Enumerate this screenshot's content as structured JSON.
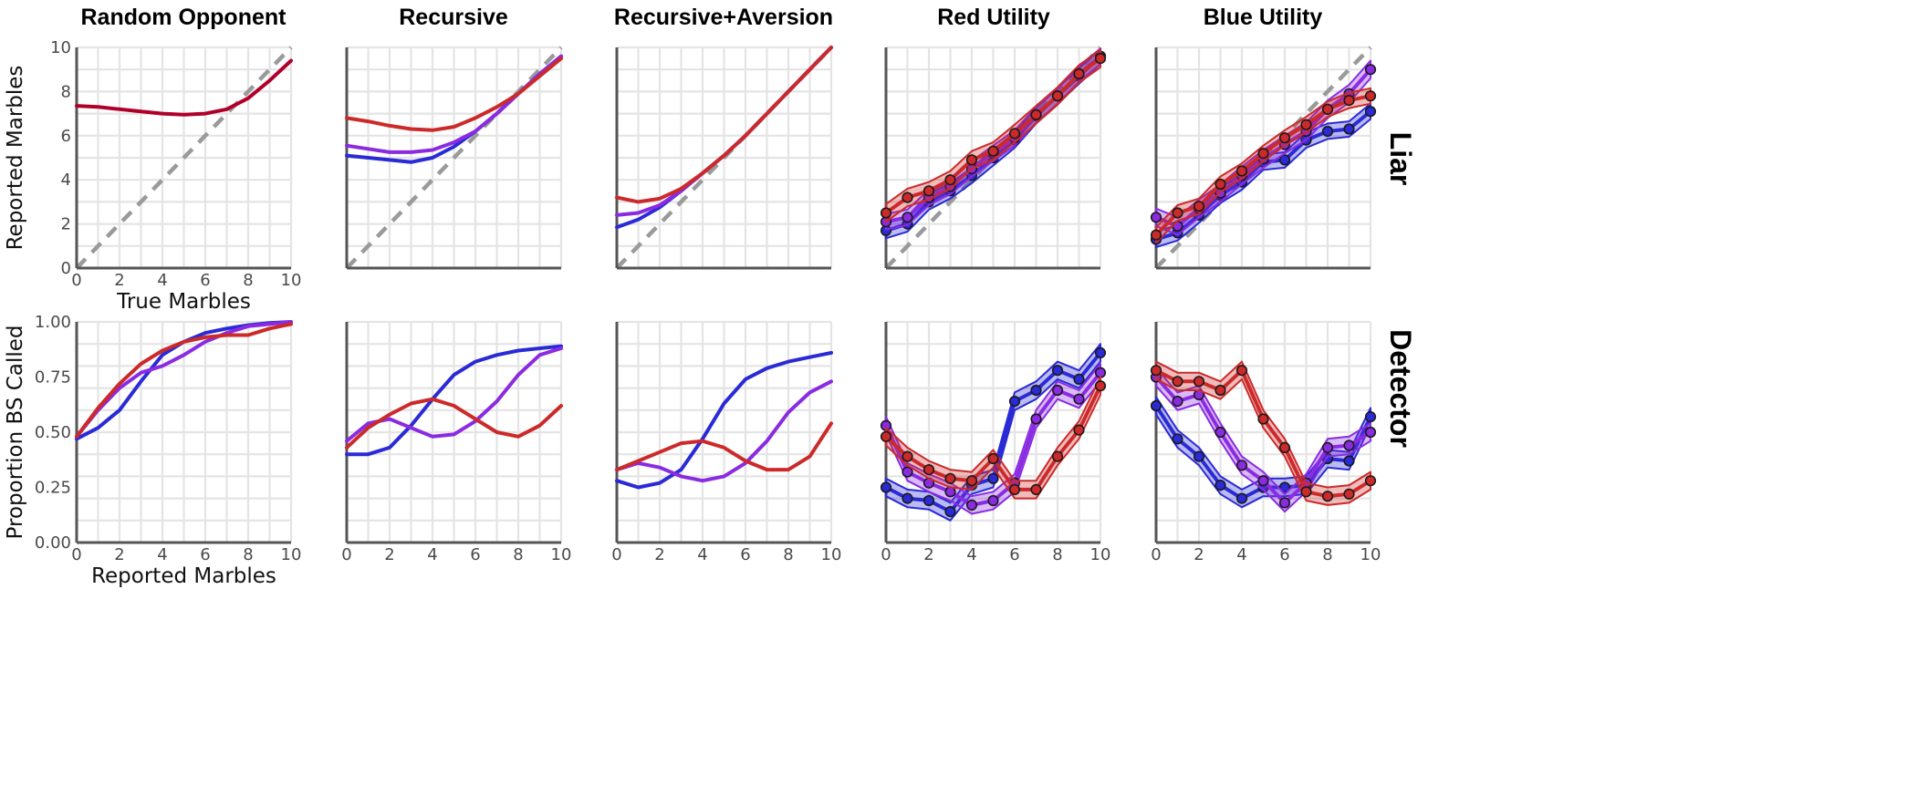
{
  "colors": {
    "red": "#cc2a2a",
    "purple": "#8a2be2",
    "blue": "#2a2ad6",
    "dark_red": "#b0002a",
    "diagonal": "#9a9a9a"
  },
  "row_labels": [
    "Liar",
    "Detector"
  ],
  "column_titles": [
    "Random Opponent",
    "Recursive",
    "Recursive+Aversion",
    "Red Utility",
    "Blue Utility"
  ],
  "chart_data": [
    {
      "type": "line",
      "row": 0,
      "col": 0,
      "title": "Random Opponent",
      "xlabel": "True Marbles",
      "ylabel": "Reported Marbles",
      "xlim": [
        0,
        10
      ],
      "ylim": [
        0,
        10
      ],
      "xticks": [
        "0",
        "2",
        "4",
        "6",
        "8",
        "10"
      ],
      "yticks": [
        "0",
        "2",
        "4",
        "6",
        "8",
        "10"
      ],
      "show_x_tick_labels": true,
      "show_y_tick_labels": true,
      "diagonal": true,
      "grid": true,
      "x": [
        0,
        1,
        2,
        3,
        4,
        5,
        6,
        7,
        8,
        9,
        10
      ],
      "series": [
        {
          "color": "dark_red",
          "values": [
            7.35,
            7.3,
            7.2,
            7.1,
            7.0,
            6.95,
            7.0,
            7.2,
            7.7,
            8.5,
            9.4
          ]
        }
      ]
    },
    {
      "type": "line",
      "row": 0,
      "col": 1,
      "title": "Recursive",
      "xlim": [
        0,
        10
      ],
      "ylim": [
        0,
        10
      ],
      "show_x_tick_labels": false,
      "show_y_tick_labels": false,
      "diagonal": true,
      "grid": true,
      "x": [
        0,
        1,
        2,
        3,
        4,
        5,
        6,
        7,
        8,
        9,
        10
      ],
      "series": [
        {
          "color": "blue",
          "values": [
            5.1,
            5.0,
            4.9,
            4.8,
            5.0,
            5.5,
            6.2,
            7.0,
            7.9,
            8.8,
            9.6
          ]
        },
        {
          "color": "purple",
          "values": [
            5.55,
            5.4,
            5.25,
            5.25,
            5.35,
            5.7,
            6.2,
            7.0,
            7.9,
            8.8,
            9.6
          ]
        },
        {
          "color": "red",
          "values": [
            6.8,
            6.65,
            6.45,
            6.3,
            6.25,
            6.4,
            6.8,
            7.3,
            7.9,
            8.7,
            9.5
          ]
        }
      ]
    },
    {
      "type": "line",
      "row": 0,
      "col": 2,
      "title": "Recursive+Aversion",
      "xlim": [
        0,
        10
      ],
      "ylim": [
        0,
        10
      ],
      "show_x_tick_labels": false,
      "show_y_tick_labels": false,
      "diagonal": true,
      "grid": true,
      "x": [
        0,
        1,
        2,
        3,
        4,
        5,
        6,
        7,
        8,
        9,
        10
      ],
      "series": [
        {
          "color": "blue",
          "values": [
            1.85,
            2.2,
            2.75,
            3.5,
            4.3,
            5.1,
            6.0,
            7.0,
            8.0,
            9.0,
            10.0
          ]
        },
        {
          "color": "purple",
          "values": [
            2.4,
            2.5,
            2.85,
            3.5,
            4.3,
            5.1,
            6.0,
            7.0,
            8.0,
            9.0,
            10.0
          ]
        },
        {
          "color": "red",
          "values": [
            3.2,
            3.0,
            3.15,
            3.6,
            4.3,
            5.1,
            6.0,
            7.0,
            8.0,
            9.0,
            10.0
          ]
        }
      ]
    },
    {
      "type": "line",
      "row": 0,
      "col": 3,
      "title": "Red Utility",
      "xlim": [
        0,
        10
      ],
      "ylim": [
        0,
        10
      ],
      "show_x_tick_labels": false,
      "show_y_tick_labels": false,
      "diagonal": true,
      "grid": true,
      "x": [
        0,
        1,
        2,
        3,
        4,
        5,
        6,
        7,
        8,
        9,
        10
      ],
      "series": [
        {
          "color": "blue",
          "band": 0.35,
          "markers": true,
          "values": [
            1.7,
            2.0,
            3.0,
            3.5,
            4.2,
            5.0,
            5.8,
            6.9,
            7.8,
            8.7,
            9.6
          ]
        },
        {
          "color": "purple",
          "band": 0.35,
          "markers": true,
          "values": [
            2.1,
            2.3,
            3.2,
            3.7,
            4.5,
            5.2,
            5.9,
            6.95,
            7.8,
            8.8,
            9.6
          ]
        },
        {
          "color": "red",
          "band": 0.4,
          "markers": true,
          "values": [
            2.5,
            3.2,
            3.5,
            4.0,
            4.9,
            5.3,
            6.1,
            6.95,
            7.8,
            8.8,
            9.5
          ]
        }
      ]
    },
    {
      "type": "line",
      "row": 0,
      "col": 4,
      "title": "Blue Utility",
      "xlim": [
        0,
        10
      ],
      "ylim": [
        0,
        10
      ],
      "show_x_tick_labels": false,
      "show_y_tick_labels": false,
      "diagonal": true,
      "grid": true,
      "x": [
        0,
        1,
        2,
        3,
        4,
        5,
        6,
        7,
        8,
        9,
        10
      ],
      "series": [
        {
          "color": "blue",
          "band": 0.35,
          "markers": true,
          "values": [
            1.3,
            1.6,
            2.4,
            3.3,
            3.9,
            4.8,
            4.9,
            5.8,
            6.2,
            6.3,
            7.1
          ]
        },
        {
          "color": "purple",
          "band": 0.4,
          "markers": true,
          "values": [
            2.3,
            1.9,
            2.7,
            3.4,
            4.2,
            4.95,
            5.6,
            6.2,
            7.2,
            7.9,
            9.0
          ]
        },
        {
          "color": "red",
          "band": 0.35,
          "markers": true,
          "values": [
            1.5,
            2.5,
            2.8,
            3.8,
            4.4,
            5.2,
            5.9,
            6.5,
            7.2,
            7.6,
            7.8
          ]
        }
      ]
    },
    {
      "type": "line",
      "row": 1,
      "col": 0,
      "xlabel": "Reported Marbles",
      "ylabel": "Proportion BS Called",
      "xlim": [
        0,
        10
      ],
      "ylim": [
        0,
        1
      ],
      "xticks": [
        "0",
        "2",
        "4",
        "6",
        "8",
        "10"
      ],
      "yticks": [
        "0.00",
        "0.25",
        "0.50",
        "0.75",
        "1.00"
      ],
      "show_x_tick_labels": true,
      "show_y_tick_labels": true,
      "diagonal": false,
      "grid": true,
      "x": [
        0,
        1,
        2,
        3,
        4,
        5,
        6,
        7,
        8,
        9,
        10
      ],
      "series": [
        {
          "color": "blue",
          "values": [
            0.47,
            0.52,
            0.6,
            0.73,
            0.85,
            0.91,
            0.95,
            0.97,
            0.985,
            0.995,
            1.0
          ]
        },
        {
          "color": "purple",
          "values": [
            0.48,
            0.6,
            0.7,
            0.77,
            0.8,
            0.85,
            0.91,
            0.95,
            0.98,
            0.99,
            1.0
          ]
        },
        {
          "color": "red",
          "values": [
            0.48,
            0.61,
            0.72,
            0.81,
            0.87,
            0.91,
            0.93,
            0.94,
            0.94,
            0.97,
            0.99
          ]
        }
      ]
    },
    {
      "type": "line",
      "row": 1,
      "col": 1,
      "xlim": [
        0,
        10
      ],
      "ylim": [
        0,
        1
      ],
      "xticks": [
        "0",
        "2",
        "4",
        "6",
        "8",
        "10"
      ],
      "show_x_tick_labels": true,
      "show_y_tick_labels": false,
      "diagonal": false,
      "grid": true,
      "x": [
        0,
        1,
        2,
        3,
        4,
        5,
        6,
        7,
        8,
        9,
        10
      ],
      "series": [
        {
          "color": "blue",
          "values": [
            0.4,
            0.4,
            0.43,
            0.53,
            0.65,
            0.76,
            0.82,
            0.85,
            0.87,
            0.88,
            0.89
          ]
        },
        {
          "color": "purple",
          "values": [
            0.46,
            0.54,
            0.56,
            0.52,
            0.48,
            0.49,
            0.55,
            0.64,
            0.76,
            0.85,
            0.88
          ]
        },
        {
          "color": "red",
          "values": [
            0.43,
            0.52,
            0.58,
            0.63,
            0.65,
            0.62,
            0.56,
            0.5,
            0.48,
            0.53,
            0.62
          ]
        }
      ]
    },
    {
      "type": "line",
      "row": 1,
      "col": 2,
      "xlim": [
        0,
        10
      ],
      "ylim": [
        0,
        1
      ],
      "xticks": [
        "0",
        "2",
        "4",
        "6",
        "8",
        "10"
      ],
      "show_x_tick_labels": true,
      "show_y_tick_labels": false,
      "diagonal": false,
      "grid": true,
      "x": [
        0,
        1,
        2,
        3,
        4,
        5,
        6,
        7,
        8,
        9,
        10
      ],
      "series": [
        {
          "color": "blue",
          "values": [
            0.28,
            0.25,
            0.27,
            0.33,
            0.47,
            0.63,
            0.74,
            0.79,
            0.82,
            0.84,
            0.86
          ]
        },
        {
          "color": "purple",
          "values": [
            0.33,
            0.36,
            0.34,
            0.3,
            0.28,
            0.3,
            0.36,
            0.46,
            0.59,
            0.68,
            0.73
          ]
        },
        {
          "color": "red",
          "values": [
            0.33,
            0.37,
            0.41,
            0.45,
            0.46,
            0.43,
            0.37,
            0.33,
            0.33,
            0.39,
            0.54
          ]
        }
      ]
    },
    {
      "type": "line",
      "row": 1,
      "col": 3,
      "xlim": [
        0,
        10
      ],
      "ylim": [
        0,
        1
      ],
      "xticks": [
        "0",
        "2",
        "4",
        "6",
        "8",
        "10"
      ],
      "show_x_tick_labels": true,
      "show_y_tick_labels": false,
      "diagonal": false,
      "grid": true,
      "x": [
        0,
        1,
        2,
        3,
        4,
        5,
        6,
        7,
        8,
        9,
        10
      ],
      "series": [
        {
          "color": "blue",
          "band": 0.04,
          "markers": true,
          "values": [
            0.25,
            0.2,
            0.19,
            0.14,
            0.26,
            0.29,
            0.64,
            0.69,
            0.78,
            0.74,
            0.86
          ]
        },
        {
          "color": "purple",
          "band": 0.04,
          "markers": true,
          "values": [
            0.53,
            0.32,
            0.27,
            0.23,
            0.17,
            0.19,
            0.27,
            0.56,
            0.69,
            0.65,
            0.77
          ]
        },
        {
          "color": "red",
          "band": 0.04,
          "markers": true,
          "values": [
            0.48,
            0.39,
            0.33,
            0.29,
            0.28,
            0.38,
            0.24,
            0.24,
            0.39,
            0.51,
            0.71
          ]
        }
      ]
    },
    {
      "type": "line",
      "row": 1,
      "col": 4,
      "xlim": [
        0,
        10
      ],
      "ylim": [
        0,
        1
      ],
      "xticks": [
        "0",
        "2",
        "4",
        "6",
        "8",
        "10"
      ],
      "show_x_tick_labels": true,
      "show_y_tick_labels": false,
      "diagonal": false,
      "grid": true,
      "x": [
        0,
        1,
        2,
        3,
        4,
        5,
        6,
        7,
        8,
        9,
        10
      ],
      "series": [
        {
          "color": "blue",
          "band": 0.04,
          "markers": true,
          "values": [
            0.62,
            0.47,
            0.39,
            0.26,
            0.2,
            0.25,
            0.25,
            0.26,
            0.38,
            0.37,
            0.57
          ]
        },
        {
          "color": "purple",
          "band": 0.04,
          "markers": true,
          "values": [
            0.75,
            0.64,
            0.67,
            0.5,
            0.35,
            0.28,
            0.18,
            0.27,
            0.43,
            0.44,
            0.5
          ]
        },
        {
          "color": "red",
          "band": 0.04,
          "markers": true,
          "values": [
            0.78,
            0.73,
            0.73,
            0.69,
            0.78,
            0.56,
            0.43,
            0.23,
            0.21,
            0.22,
            0.28
          ]
        }
      ]
    }
  ]
}
